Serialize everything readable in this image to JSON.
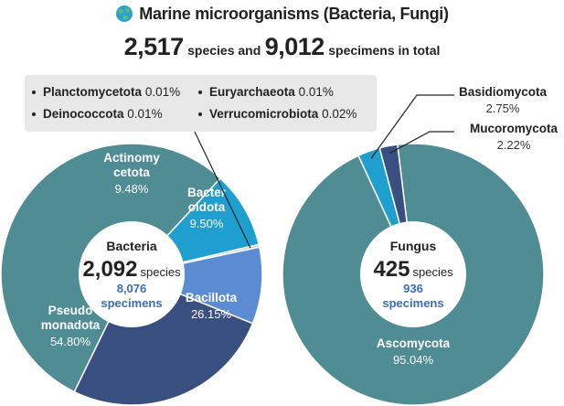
{
  "title": "Marine microorganisms (Bacteria, Fungi)",
  "summary": {
    "species_count": "2,517",
    "species_word": "species and",
    "specimen_count": "9,012",
    "specimen_word": "specimens  in total"
  },
  "colors": {
    "pseudomonadota": "#4f8c94",
    "actinomycetota": "#1f9ed0",
    "bacteroidota": "#5b8bd0",
    "bacillota": "#394f7f",
    "minor": "#c8c8c8",
    "ascomycota": "#4f8c94",
    "basidiomycota": "#1f9ed0",
    "mucoromycota": "#394f7f",
    "specimen_text": "#3a6db5"
  },
  "legend": {
    "items": [
      {
        "name": "Planctomycetota",
        "pct": "0.01%"
      },
      {
        "name": "Euryarchaeota",
        "pct": "0.01%"
      },
      {
        "name": "Deinococcota",
        "pct": "0.01%"
      },
      {
        "name": "Verrucomicrobiota",
        "pct": "0.02%"
      }
    ]
  },
  "chart_data": [
    {
      "type": "pie",
      "center": {
        "name": "Bacteria",
        "species": "2,092",
        "species_unit": "species",
        "specimens": "8,076",
        "specimens_unit": "specimens"
      },
      "slices": [
        {
          "key": "pseudomonadota",
          "label_lines": [
            "Pseudo",
            "monadota"
          ],
          "pct_label": "54.80%",
          "value": 54.8
        },
        {
          "key": "actinomycetota",
          "label_lines": [
            "Actinomy",
            "cetota"
          ],
          "pct_label": "9.48%",
          "value": 9.48
        },
        {
          "key": "minor",
          "label_lines": [],
          "pct_label": "",
          "value": 0.05
        },
        {
          "key": "bacteroidota",
          "label_lines": [
            "Bacter",
            "oidota"
          ],
          "pct_label": "9.50%",
          "value": 9.5
        },
        {
          "key": "bacillota",
          "label_lines": [
            "Bacillota"
          ],
          "pct_label": "26.15%",
          "value": 26.15
        }
      ]
    },
    {
      "type": "pie",
      "center": {
        "name": "Fungus",
        "species": "425",
        "species_unit": "species",
        "specimens": "936",
        "specimens_unit": "specimens"
      },
      "slices": [
        {
          "key": "ascomycota",
          "label_lines": [
            "Ascomycota"
          ],
          "pct_label": "95.04%",
          "value": 95.04
        },
        {
          "key": "basidiomycota",
          "label_lines": [
            "Basidiomycota"
          ],
          "pct_label": "2.75%",
          "value": 2.75
        },
        {
          "key": "mucoromycota",
          "label_lines": [
            "Mucoromycota"
          ],
          "pct_label": "2.22%",
          "value": 2.22
        }
      ]
    }
  ]
}
